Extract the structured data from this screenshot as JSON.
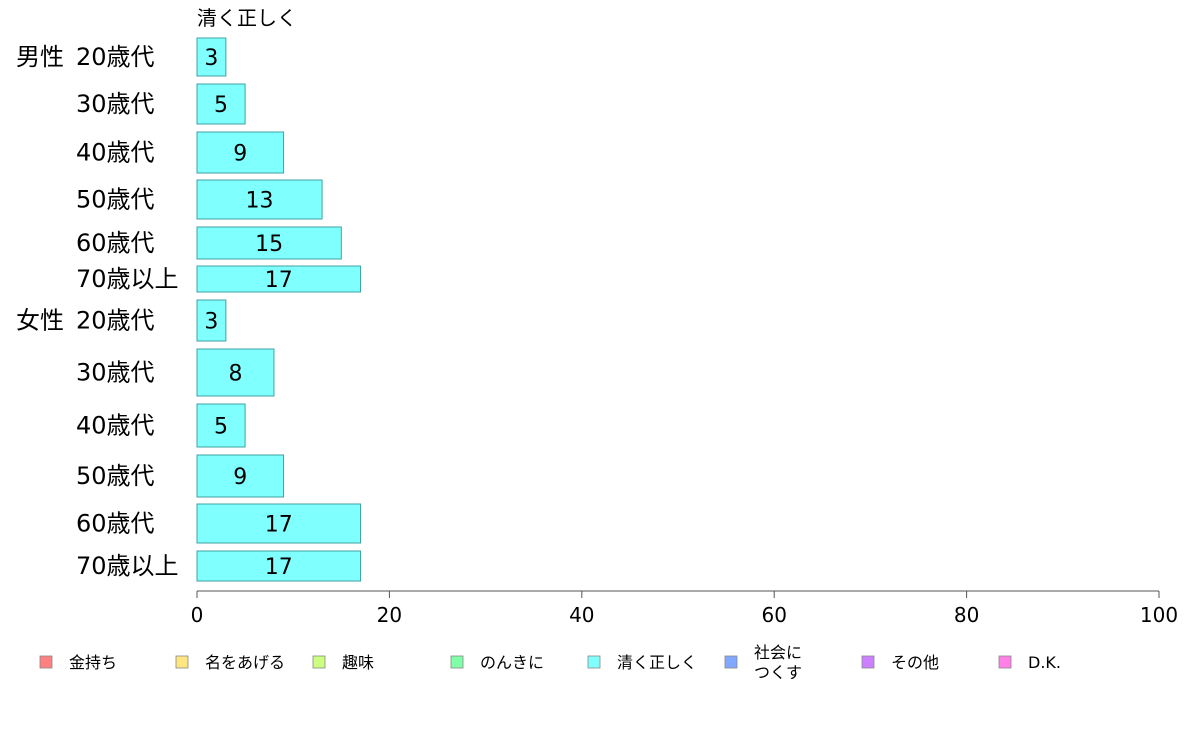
{
  "chart_data": {
    "type": "bar",
    "orientation": "horizontal",
    "series_title": "清く正しく",
    "groups": [
      {
        "label": "男性",
        "categories": [
          "20歳代",
          "30歳代",
          "40歳代",
          "50歳代",
          "60歳代",
          "70歳以上"
        ],
        "values": [
          3,
          5,
          9,
          13,
          15,
          17
        ]
      },
      {
        "label": "女性",
        "categories": [
          "20歳代",
          "30歳代",
          "40歳代",
          "50歳代",
          "60歳代",
          "70歳以上"
        ],
        "values": [
          3,
          8,
          5,
          9,
          17,
          17
        ]
      }
    ],
    "xlim": [
      0,
      100
    ],
    "xticks": [
      "0",
      "20",
      "40",
      "60",
      "80",
      "100"
    ],
    "xlabel": "",
    "ylabel": "",
    "grid": false,
    "legend_placement": "bottom",
    "legend": [
      {
        "lines": [
          "金持ち"
        ],
        "color": "#ff8080"
      },
      {
        "lines": [
          "名をあげる"
        ],
        "color": "#ffe680"
      },
      {
        "lines": [
          "趣味"
        ],
        "color": "#ccff80"
      },
      {
        "lines": [
          "のんきに"
        ],
        "color": "#80ffa8"
      },
      {
        "lines": [
          "清く正しく"
        ],
        "color": "#80ffff"
      },
      {
        "lines": [
          "社会に",
          "つくす"
        ],
        "color": "#80a8ff"
      },
      {
        "lines": [
          "その他"
        ],
        "color": "#cc80ff"
      },
      {
        "lines": [
          "D.K."
        ],
        "color": "#ff80e6"
      }
    ],
    "bar_color": "#80ffff",
    "bar_stroke": "#3fa3a3"
  }
}
